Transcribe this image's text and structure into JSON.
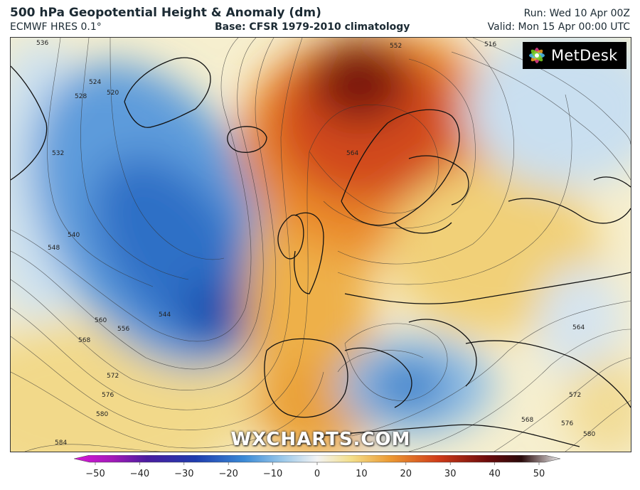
{
  "header": {
    "title": "500 hPa Geopotential Height & Anomaly (dm)",
    "subtitle": "ECMWF HRES 0.1°",
    "base": "Base: CFSR 1979-2010 climatology",
    "run": "Run: Wed 10 Apr 00Z",
    "valid": "Valid: Mon 15 Apr 00:00 UTC"
  },
  "logo": {
    "text": "MetDesk",
    "icon": "metdesk-flower-icon"
  },
  "watermark": "WXCHARTS.COM",
  "colorbar": {
    "ticks": [
      "−50",
      "−40",
      "−30",
      "−20",
      "−10",
      "0",
      "10",
      "20",
      "30",
      "40",
      "50"
    ]
  },
  "contour_labels": [
    "536",
    "528",
    "524",
    "520",
    "532",
    "540",
    "548",
    "560",
    "556",
    "568",
    "572",
    "576",
    "580",
    "584",
    "544",
    "564",
    "552",
    "516",
    "580",
    "572",
    "576",
    "568",
    "564"
  ],
  "colors": {
    "neg_strong": "#1a3fa8",
    "neg_mid": "#3e86d4",
    "neg_light": "#bcd9ef",
    "neutral": "#f6f1df",
    "pos_light": "#f3df96",
    "pos_mid": "#eb9a3a",
    "pos_strong": "#c8381a",
    "pos_max": "#5e0a0a"
  }
}
